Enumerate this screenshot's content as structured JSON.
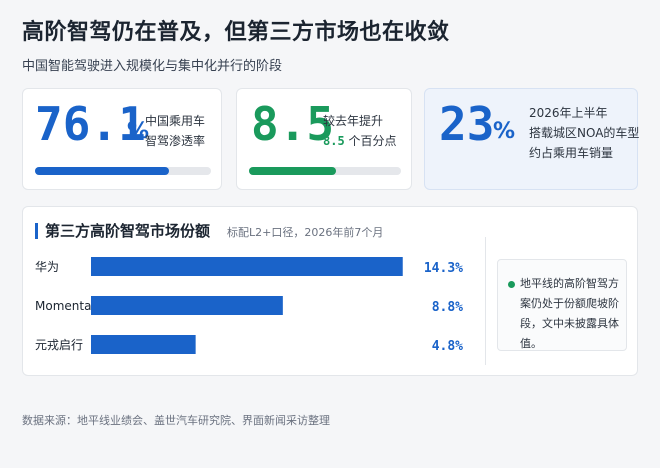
{
  "header": {
    "title": "高阶智驾仍在普及，但第三方市场也在收敛",
    "subtitle": "中国智能驾驶进入规模化与集中化并行的阶段"
  },
  "kpis": [
    {
      "value": "76.1",
      "unit": "%",
      "note_lines": [
        "中国乘用车",
        "智驾渗透率"
      ],
      "progress": 0.761,
      "color": "#1a63c9"
    },
    {
      "value": "8.5",
      "note_line1": "较去年提升",
      "note_hl": "8.5",
      "note_suffix": " 个百分点",
      "progress": 0.57,
      "color": "#1a9a5c"
    },
    {
      "value": "23",
      "unit": "%",
      "note_lines": [
        "2026年上半年",
        "搭载城区NOA的车型",
        "约占乘用车销量"
      ],
      "color": "#1a63c9"
    }
  ],
  "chart_section": {
    "title": "第三方高阶智驾市场份额",
    "note": "标配L2+口径，2026年前7个月",
    "side_note": "地平线的高阶智驾方案仍处于份额爬坡阶段，文中未披露具体值。"
  },
  "chart_data": {
    "type": "bar",
    "orientation": "horizontal",
    "categories": [
      "华为",
      "Momenta",
      "元戎启行"
    ],
    "values": [
      14.3,
      8.8,
      4.8
    ],
    "value_labels": [
      "14.3%",
      "8.8%",
      "4.8%"
    ],
    "xlim": [
      0,
      15
    ],
    "title": "第三方高阶智驾市场份额",
    "grid": false,
    "bar_color": "#1a63c9"
  },
  "footer": {
    "source": "数据来源：地平线业绩会、盖世汽车研究院、界面新闻采访整理"
  }
}
